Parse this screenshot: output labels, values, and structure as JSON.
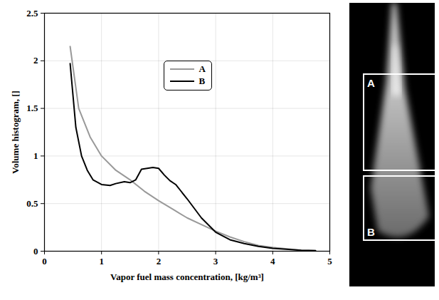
{
  "chart_data": {
    "type": "line",
    "xlabel": "Vapor fuel mass concentration, [kg/m³]",
    "ylabel": "Volume histogram, []",
    "xlim": [
      0,
      5
    ],
    "ylim": [
      0,
      2.5
    ],
    "xticks": [
      0,
      1,
      2,
      3,
      4,
      5
    ],
    "yticks": [
      0,
      0.5,
      1,
      1.5,
      2,
      2.5
    ],
    "grid": true,
    "legend": "upper right",
    "series": [
      {
        "name": "A",
        "color": "#999999",
        "x": [
          0.45,
          0.6,
          0.8,
          1.0,
          1.25,
          1.5,
          1.75,
          2.0,
          2.25,
          2.5,
          2.75,
          3.0,
          3.25,
          3.5,
          3.75,
          4.0,
          4.5,
          4.75
        ],
        "values": [
          2.15,
          1.5,
          1.2,
          1.0,
          0.85,
          0.75,
          0.63,
          0.53,
          0.44,
          0.35,
          0.28,
          0.21,
          0.15,
          0.1,
          0.06,
          0.04,
          0.01,
          0.005
        ]
      },
      {
        "name": "B",
        "color": "#000000",
        "x": [
          0.45,
          0.55,
          0.65,
          0.75,
          0.85,
          1.0,
          1.15,
          1.25,
          1.4,
          1.5,
          1.6,
          1.7,
          1.8,
          1.9,
          2.0,
          2.1,
          2.2,
          2.3,
          2.5,
          2.75,
          3.0,
          3.25,
          3.5,
          3.75,
          4.0,
          4.5,
          4.75
        ],
        "values": [
          1.97,
          1.3,
          1.0,
          0.85,
          0.75,
          0.7,
          0.69,
          0.71,
          0.73,
          0.72,
          0.75,
          0.86,
          0.87,
          0.88,
          0.87,
          0.8,
          0.74,
          0.7,
          0.55,
          0.35,
          0.2,
          0.12,
          0.08,
          0.05,
          0.03,
          0.01,
          0.005
        ]
      }
    ]
  },
  "image_panel": {
    "regions": [
      "A",
      "B"
    ]
  }
}
